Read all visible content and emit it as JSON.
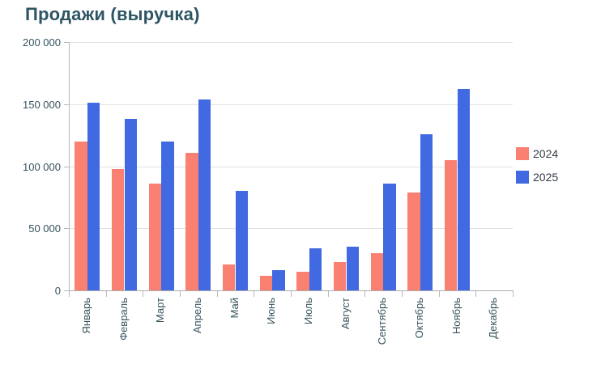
{
  "title": "Продажи (выручка)",
  "chart_data": {
    "type": "bar",
    "title": "Продажи (выручка)",
    "categories": [
      "Январь",
      "Февраль",
      "Март",
      "Апрель",
      "Май",
      "Июнь",
      "Июль",
      "Август",
      "Сентябрь",
      "Октябрь",
      "Ноябрь",
      "Декабрь"
    ],
    "series": [
      {
        "name": "2024",
        "color": "#FA8072",
        "values": [
          120000,
          98000,
          86000,
          111000,
          21000,
          12000,
          15000,
          23000,
          30000,
          79000,
          105000,
          0
        ]
      },
      {
        "name": "2025",
        "color": "#4169E1",
        "values": [
          151000,
          138000,
          120000,
          154000,
          80000,
          16000,
          34000,
          35000,
          86000,
          126000,
          162000,
          0
        ]
      }
    ],
    "ylim": [
      0,
      200000
    ],
    "y_ticks": [
      0,
      50000,
      100000,
      150000,
      200000
    ],
    "y_tick_labels": [
      "0",
      "50 000",
      "100 000",
      "150 000",
      "200 000"
    ],
    "grid": true,
    "legend_position": "right"
  }
}
